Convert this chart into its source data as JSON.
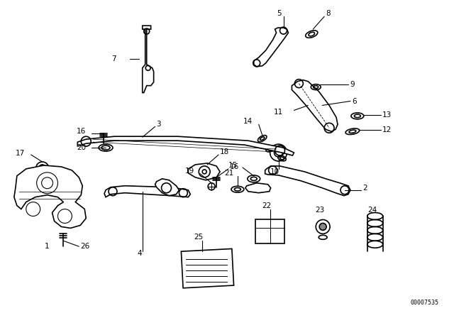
{
  "bg_color": "#ffffff",
  "line_color": "#000000",
  "part_number_text": "00007535",
  "figsize": [
    6.4,
    4.48
  ],
  "dpi": 100
}
